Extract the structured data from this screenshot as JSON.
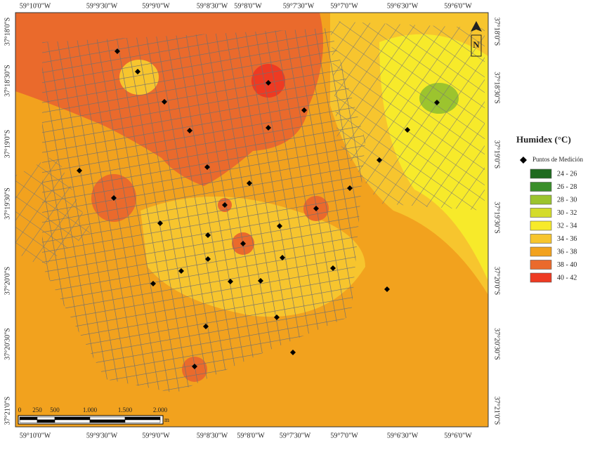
{
  "top_labels": [
    "59°10'0\"W",
    "59°9'30\"W",
    "59°9'0\"W",
    "59°8'30\"W",
    "59°8'0\"W",
    "59°7'30\"W",
    "59°7'0\"W",
    "59°6'30\"W",
    "59°6'0\"W"
  ],
  "bottom_labels": [
    "59°10'0\"W",
    "59°9'30\"W",
    "59°9'0\"W",
    "59°8'30\"W",
    "59°8'0\"W",
    "59°7'30\"W",
    "59°7'0\"W",
    "59°6'30\"W",
    "59°6'0\"W"
  ],
  "left_labels": [
    "37°18'0\"S",
    "37°18'30\"S",
    "37°19'0\"S",
    "37°19'30\"S",
    "37°20'0\"S",
    "37°20'30\"S",
    "37°21'0\"S"
  ],
  "right_labels": [
    "37°18'0\"S",
    "37°18'30\"S",
    "37°19'0\"S",
    "37°19'30\"S",
    "37°20'0\"S",
    "37°20'30\"S",
    "37°21'0\"S"
  ],
  "legend": {
    "title": "Humidex (°C)",
    "point_label": "Puntos de Medición",
    "classes": [
      {
        "label": "24 - 26",
        "color": "#1f6b1f"
      },
      {
        "label": "26 - 28",
        "color": "#3a8f2a"
      },
      {
        "label": "28 - 30",
        "color": "#9cc42e"
      },
      {
        "label": "30 - 32",
        "color": "#d4dc2a"
      },
      {
        "label": "32 - 34",
        "color": "#f7ea2a"
      },
      {
        "label": "34 - 36",
        "color": "#f7c52e"
      },
      {
        "label": "36 - 38",
        "color": "#f2a21e"
      },
      {
        "label": "38 - 40",
        "color": "#ea6a2c"
      },
      {
        "label": "40 - 42",
        "color": "#ee3a22"
      }
    ]
  },
  "scale": {
    "labels": [
      "0",
      "250",
      "500",
      "1.000",
      "1.500",
      "2.000"
    ],
    "unit": "m"
  },
  "north": "N"
}
